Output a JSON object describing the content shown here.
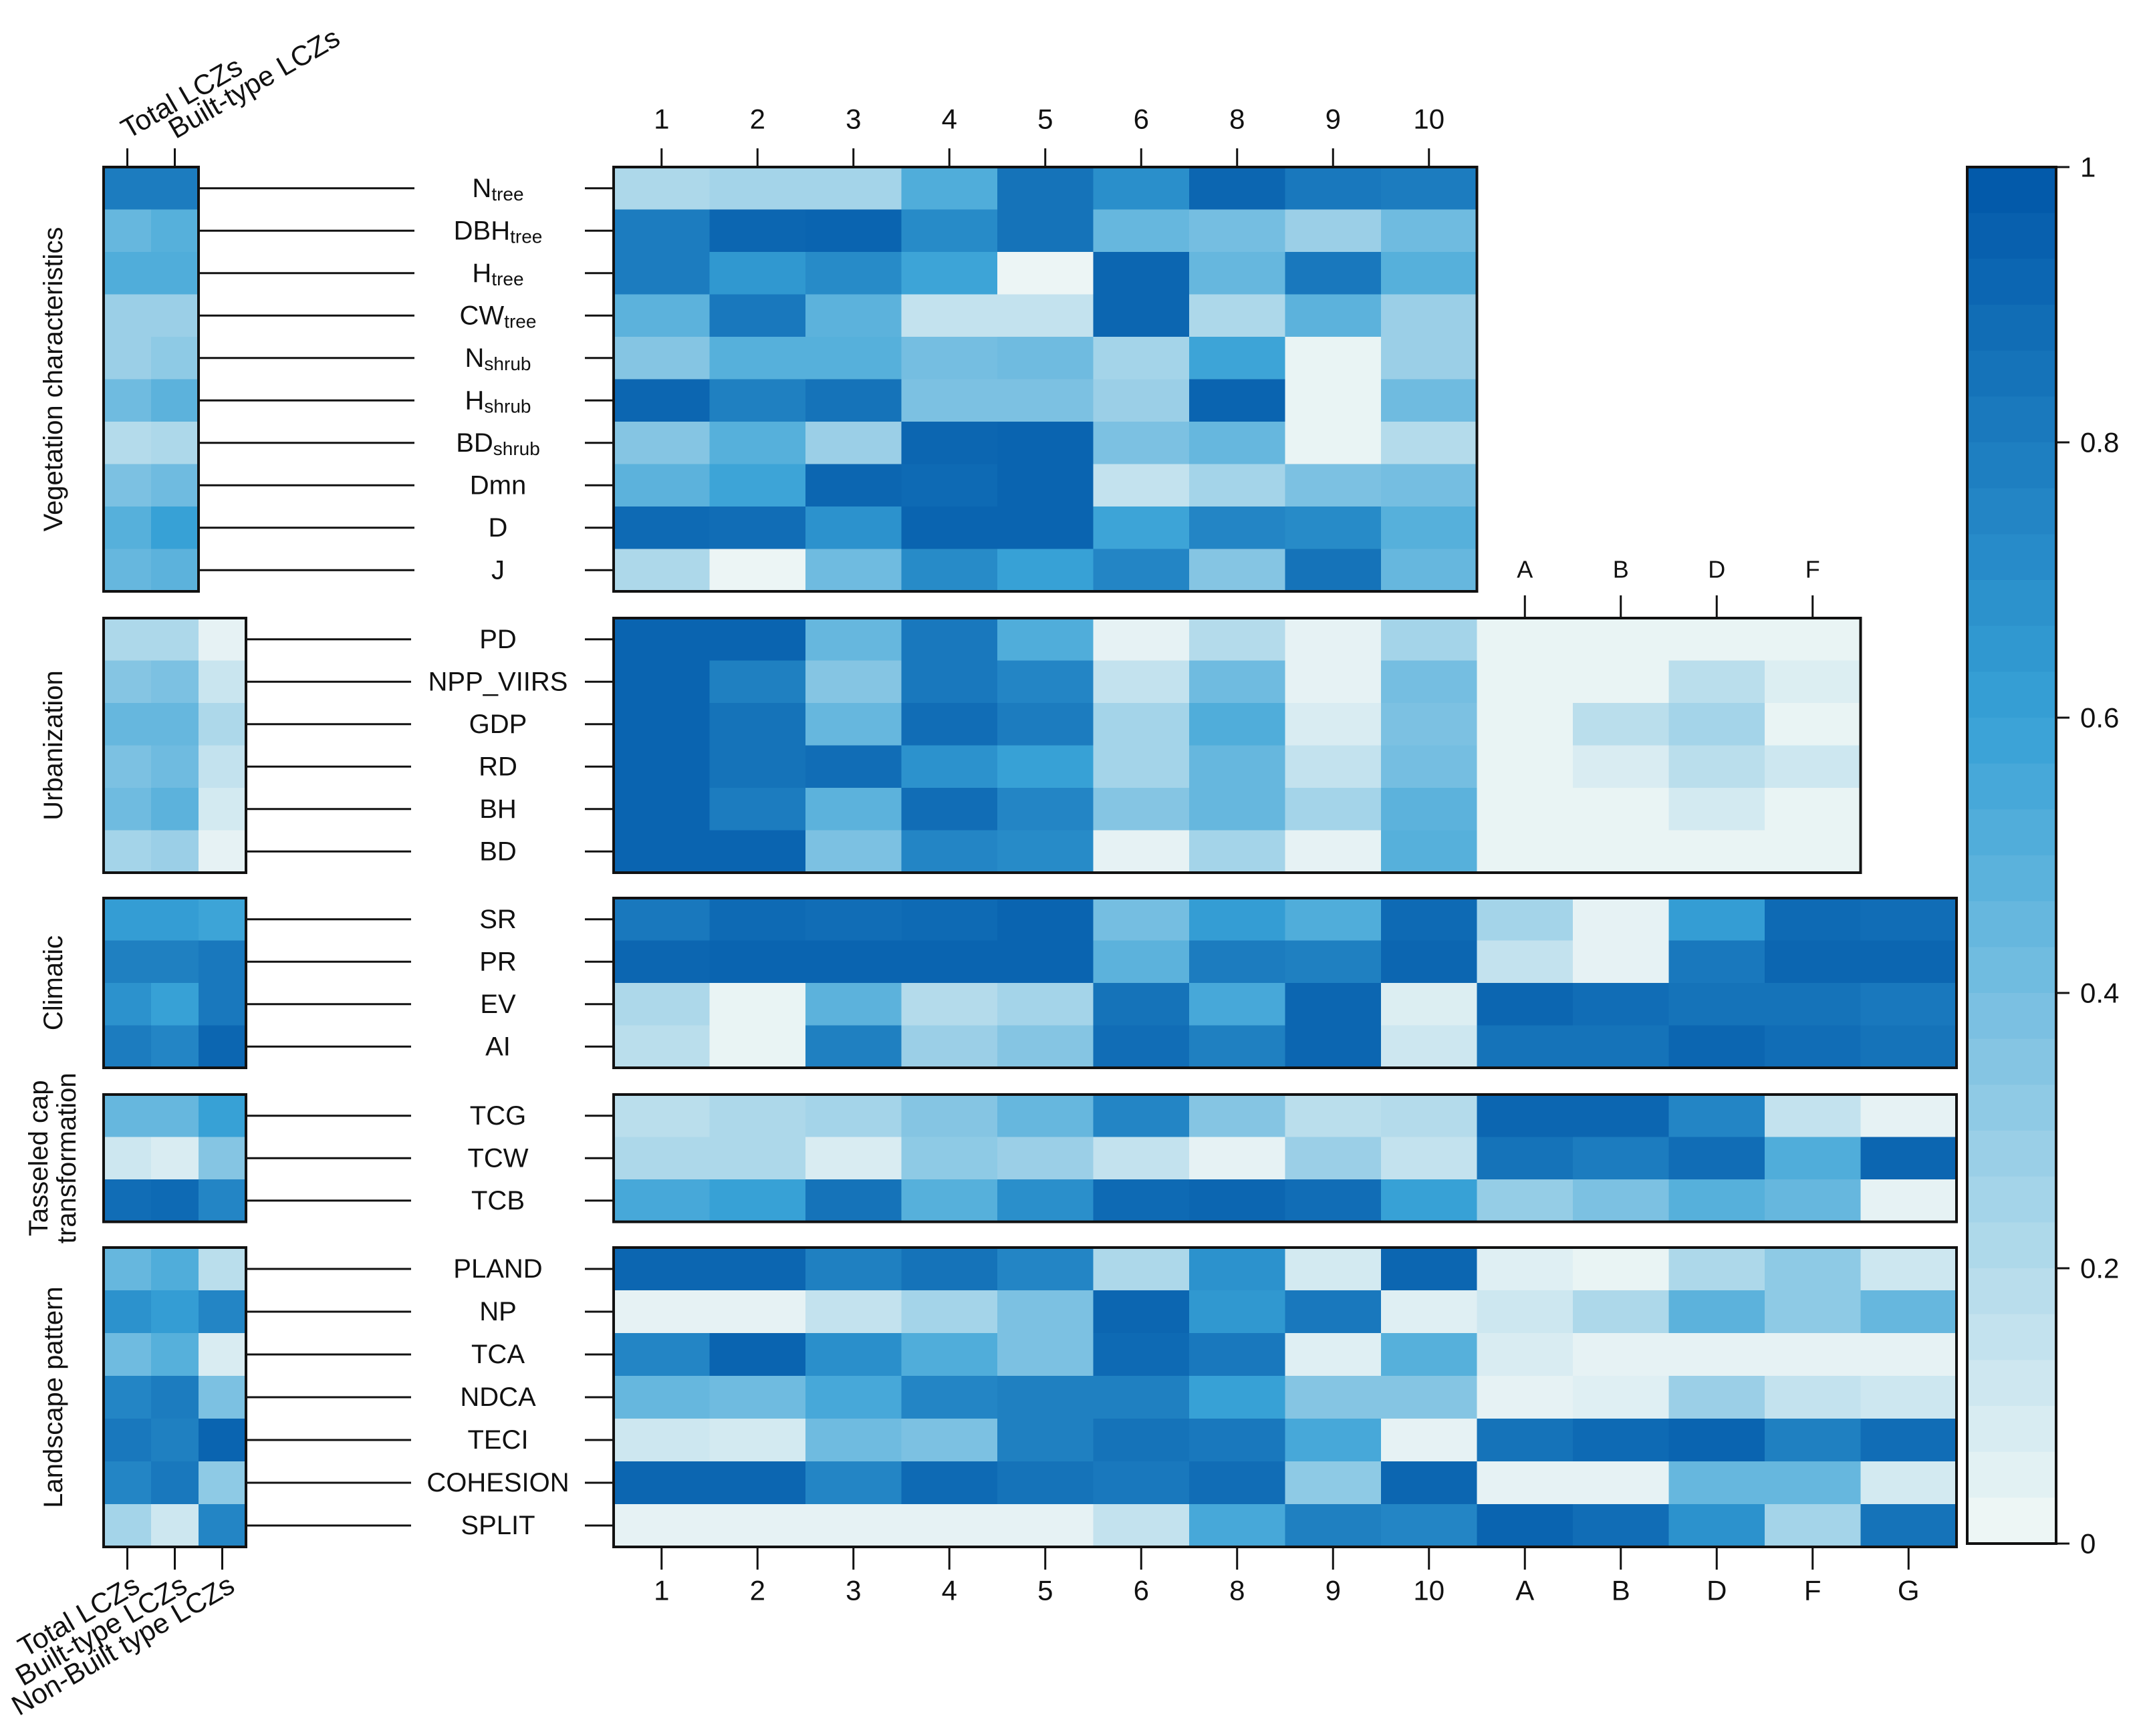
{
  "chart_data": {
    "type": "heatmap",
    "title": "",
    "colorbar": {
      "min": 0,
      "max": 1,
      "ticks": [
        "0",
        "0.2",
        "0.4",
        "0.6",
        "0.8",
        "1"
      ],
      "tick_values": [
        0,
        0.2,
        0.4,
        0.6,
        0.8,
        1
      ],
      "color_low": "#f2f8f6",
      "color_mid": "#37a1d6",
      "color_high": "#0157a8"
    },
    "column_labels": {
      "top_main": [
        "1",
        "2",
        "3",
        "4",
        "5",
        "6",
        "8",
        "9",
        "10"
      ],
      "top_extra": [
        "A",
        "B",
        "D",
        "F"
      ],
      "bottom_main": [
        "1",
        "2",
        "3",
        "4",
        "5",
        "6",
        "8",
        "9",
        "10",
        "A",
        "B",
        "D",
        "F",
        "G"
      ],
      "top_left": [
        "Total LCZs",
        "Built-type LCZs"
      ],
      "bottom_left": [
        "Total LCZs",
        "Built-type LCZs",
        "Non-Built type LCZs"
      ]
    },
    "groups": [
      {
        "label": "Vegetation characteristics",
        "label_lines": [
          "Vegetation characteristics"
        ],
        "rows": [
          {
            "label": "N",
            "sub": "tree"
          },
          {
            "label": "DBH",
            "sub": "tree"
          },
          {
            "label": "H",
            "sub": "tree"
          },
          {
            "label": "CW",
            "sub": "tree"
          },
          {
            "label": "N",
            "sub": "shrub"
          },
          {
            "label": "H",
            "sub": "shrub"
          },
          {
            "label": "BD",
            "sub": "shrub"
          },
          {
            "label": "Dmn",
            "sub": ""
          },
          {
            "label": "D",
            "sub": ""
          },
          {
            "label": "J",
            "sub": ""
          }
        ],
        "left_values": [
          [
            0.8,
            0.8
          ],
          [
            0.45,
            0.5
          ],
          [
            0.52,
            0.52
          ],
          [
            0.28,
            0.28
          ],
          [
            0.28,
            0.32
          ],
          [
            0.42,
            0.48
          ],
          [
            0.2,
            0.22
          ],
          [
            0.38,
            0.42
          ],
          [
            0.5,
            0.6
          ],
          [
            0.45,
            0.48
          ]
        ],
        "main_values": [
          [
            0.22,
            0.25,
            0.25,
            0.52,
            0.85,
            0.7,
            0.92,
            0.82,
            0.8
          ],
          [
            0.8,
            0.92,
            0.93,
            0.72,
            0.85,
            0.45,
            0.4,
            0.28,
            0.42
          ],
          [
            0.8,
            0.65,
            0.72,
            0.58,
            0.02,
            0.92,
            0.45,
            0.82,
            0.5
          ],
          [
            0.48,
            0.82,
            0.48,
            0.15,
            0.15,
            0.92,
            0.22,
            0.48,
            0.28
          ],
          [
            0.35,
            0.5,
            0.5,
            0.4,
            0.42,
            0.25,
            0.58,
            0.03,
            0.28
          ],
          [
            0.92,
            0.78,
            0.85,
            0.38,
            0.38,
            0.28,
            0.93,
            0.03,
            0.42
          ],
          [
            0.35,
            0.5,
            0.28,
            0.92,
            0.93,
            0.38,
            0.45,
            0.03,
            0.2
          ],
          [
            0.48,
            0.58,
            0.92,
            0.9,
            0.93,
            0.15,
            0.25,
            0.38,
            0.4
          ],
          [
            0.9,
            0.88,
            0.68,
            0.93,
            0.93,
            0.58,
            0.75,
            0.72,
            0.5
          ],
          [
            0.22,
            0.02,
            0.42,
            0.72,
            0.6,
            0.75,
            0.35,
            0.85,
            0.45
          ]
        ],
        "main_cols": 9
      },
      {
        "label": "Urbanization",
        "label_lines": [
          "Urbanization"
        ],
        "rows": [
          {
            "label": "PD",
            "sub": ""
          },
          {
            "label": "NPP_VIIRS",
            "sub": ""
          },
          {
            "label": "GDP",
            "sub": ""
          },
          {
            "label": "RD",
            "sub": ""
          },
          {
            "label": "BH",
            "sub": ""
          },
          {
            "label": "BD",
            "sub": ""
          }
        ],
        "left_values": [
          [
            0.22,
            0.22,
            0.04
          ],
          [
            0.35,
            0.38,
            0.13
          ],
          [
            0.45,
            0.45,
            0.22
          ],
          [
            0.38,
            0.42,
            0.15
          ],
          [
            0.42,
            0.48,
            0.1
          ],
          [
            0.25,
            0.28,
            0.04
          ]
        ],
        "main_values": [
          [
            0.93,
            0.93,
            0.45,
            0.82,
            0.52,
            0.04,
            0.2,
            0.04,
            0.25,
            0.03,
            0.03,
            0.03,
            0.03
          ],
          [
            0.93,
            0.78,
            0.35,
            0.82,
            0.75,
            0.15,
            0.42,
            0.04,
            0.4,
            0.03,
            0.03,
            0.18,
            0.07
          ],
          [
            0.93,
            0.85,
            0.45,
            0.88,
            0.8,
            0.25,
            0.52,
            0.08,
            0.38,
            0.03,
            0.18,
            0.25,
            0.03
          ],
          [
            0.93,
            0.85,
            0.88,
            0.68,
            0.6,
            0.25,
            0.45,
            0.15,
            0.4,
            0.03,
            0.08,
            0.18,
            0.12
          ],
          [
            0.93,
            0.8,
            0.48,
            0.88,
            0.75,
            0.35,
            0.45,
            0.25,
            0.48,
            0.03,
            0.03,
            0.1,
            0.03
          ],
          [
            0.93,
            0.93,
            0.38,
            0.75,
            0.72,
            0.04,
            0.25,
            0.04,
            0.5,
            0.03,
            0.03,
            0.03,
            0.03
          ]
        ],
        "main_cols": 13
      },
      {
        "label": "Climatic",
        "label_lines": [
          "Climatic"
        ],
        "rows": [
          {
            "label": "SR",
            "sub": ""
          },
          {
            "label": "PR",
            "sub": ""
          },
          {
            "label": "EV",
            "sub": ""
          },
          {
            "label": "AI",
            "sub": ""
          }
        ],
        "left_values": [
          [
            0.62,
            0.62,
            0.58
          ],
          [
            0.78,
            0.78,
            0.82
          ],
          [
            0.68,
            0.6,
            0.82
          ],
          [
            0.8,
            0.75,
            0.92
          ]
        ],
        "main_values": [
          [
            0.82,
            0.9,
            0.88,
            0.9,
            0.93,
            0.4,
            0.62,
            0.52,
            0.9,
            0.25,
            0.04,
            0.62,
            0.9,
            0.88
          ],
          [
            0.92,
            0.93,
            0.93,
            0.93,
            0.93,
            0.48,
            0.8,
            0.78,
            0.92,
            0.15,
            0.04,
            0.82,
            0.92,
            0.92
          ],
          [
            0.22,
            0.03,
            0.48,
            0.2,
            0.25,
            0.85,
            0.55,
            0.92,
            0.07,
            0.92,
            0.88,
            0.85,
            0.85,
            0.82
          ],
          [
            0.18,
            0.03,
            0.78,
            0.28,
            0.35,
            0.88,
            0.78,
            0.92,
            0.12,
            0.85,
            0.85,
            0.92,
            0.88,
            0.85
          ]
        ],
        "main_cols": 14
      },
      {
        "label": "Tasseled cap transformation",
        "label_lines": [
          "Tasseled cap",
          "transformation"
        ],
        "rows": [
          {
            "label": "TCG",
            "sub": ""
          },
          {
            "label": "TCW",
            "sub": ""
          },
          {
            "label": "TCB",
            "sub": ""
          }
        ],
        "left_values": [
          [
            0.45,
            0.45,
            0.6
          ],
          [
            0.12,
            0.08,
            0.35
          ],
          [
            0.88,
            0.9,
            0.75
          ]
        ],
        "main_values": [
          [
            0.18,
            0.22,
            0.25,
            0.35,
            0.45,
            0.75,
            0.35,
            0.18,
            0.2,
            0.92,
            0.92,
            0.75,
            0.15,
            0.04
          ],
          [
            0.22,
            0.22,
            0.08,
            0.32,
            0.28,
            0.15,
            0.04,
            0.28,
            0.15,
            0.85,
            0.8,
            0.88,
            0.52,
            0.92
          ],
          [
            0.55,
            0.6,
            0.85,
            0.5,
            0.7,
            0.9,
            0.92,
            0.88,
            0.6,
            0.3,
            0.38,
            0.5,
            0.45,
            0.04
          ]
        ],
        "main_cols": 14
      },
      {
        "label": "Landscape pattern",
        "label_lines": [
          "Landscape pattern"
        ],
        "rows": [
          {
            "label": "PLAND",
            "sub": ""
          },
          {
            "label": "NP",
            "sub": ""
          },
          {
            "label": "TCA",
            "sub": ""
          },
          {
            "label": "NDCA",
            "sub": ""
          },
          {
            "label": "TECI",
            "sub": ""
          },
          {
            "label": "COHESION",
            "sub": ""
          },
          {
            "label": "SPLIT",
            "sub": ""
          }
        ],
        "left_values": [
          [
            0.45,
            0.52,
            0.18
          ],
          [
            0.68,
            0.62,
            0.75
          ],
          [
            0.42,
            0.5,
            0.08
          ],
          [
            0.75,
            0.8,
            0.38
          ],
          [
            0.82,
            0.78,
            0.93
          ],
          [
            0.75,
            0.82,
            0.32
          ],
          [
            0.25,
            0.12,
            0.75
          ]
        ],
        "main_values": [
          [
            0.92,
            0.92,
            0.78,
            0.85,
            0.75,
            0.22,
            0.68,
            0.1,
            0.92,
            0.06,
            0.03,
            0.22,
            0.32,
            0.12
          ],
          [
            0.04,
            0.04,
            0.15,
            0.25,
            0.38,
            0.92,
            0.65,
            0.82,
            0.06,
            0.12,
            0.22,
            0.48,
            0.32,
            0.45
          ],
          [
            0.75,
            0.93,
            0.7,
            0.52,
            0.38,
            0.9,
            0.82,
            0.06,
            0.5,
            0.08,
            0.04,
            0.04,
            0.04,
            0.04
          ],
          [
            0.45,
            0.42,
            0.55,
            0.75,
            0.78,
            0.78,
            0.6,
            0.35,
            0.35,
            0.04,
            0.06,
            0.28,
            0.15,
            0.12
          ],
          [
            0.12,
            0.1,
            0.42,
            0.38,
            0.78,
            0.85,
            0.82,
            0.55,
            0.04,
            0.85,
            0.9,
            0.93,
            0.78,
            0.88
          ],
          [
            0.92,
            0.92,
            0.75,
            0.9,
            0.85,
            0.82,
            0.88,
            0.32,
            0.92,
            0.04,
            0.04,
            0.45,
            0.45,
            0.1
          ],
          [
            0.04,
            0.04,
            0.04,
            0.04,
            0.04,
            0.15,
            0.55,
            0.78,
            0.75,
            0.93,
            0.88,
            0.68,
            0.25,
            0.85
          ]
        ],
        "main_cols": 14
      }
    ]
  }
}
